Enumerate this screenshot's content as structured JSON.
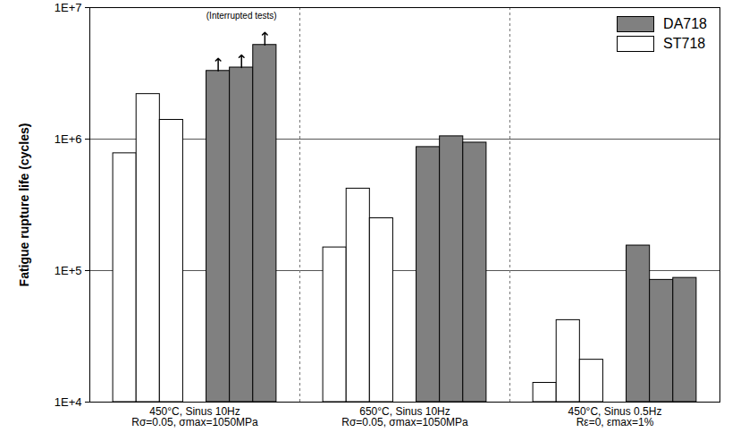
{
  "chart_data": {
    "type": "bar",
    "categories": [
      "450°C, Sinus 10Hz\nRσ=0.05, σmax=1050MPa",
      "650°C, Sinus 10Hz\nRσ=0.05, σmax=1050MPa",
      "450°C, Sinus 0.5Hz\nRε=0, εmax=1%"
    ],
    "series": [
      {
        "name": "DA718",
        "color": "#808080",
        "values": [
          [
            3300000,
            3500000,
            5200000
          ],
          [
            870000,
            1050000,
            940000
          ],
          [
            155000,
            85000,
            88000
          ]
        ],
        "interrupted": [
          [
            true,
            true,
            true
          ],
          [
            false,
            false,
            false
          ],
          [
            false,
            false,
            false
          ]
        ]
      },
      {
        "name": "ST718",
        "color": "#ffffff",
        "values": [
          [
            780000,
            2200000,
            1400000
          ],
          [
            150000,
            420000,
            250000
          ],
          [
            14000,
            42000,
            21000
          ]
        ]
      }
    ],
    "annotations": [
      {
        "text": "(Interrupted tests)",
        "series": "DA718",
        "category": "450°C, Sinus 10Hz\nRσ=0.05, σmax=1050MPa"
      }
    ],
    "y_label": "Fatigue rupture life (cycles)",
    "log": "y",
    "ylim": [
      10000,
      10000000
    ],
    "yticks": [
      {
        "value": 10000,
        "label": "1E+4"
      },
      {
        "value": 100000,
        "label": "1E+5"
      },
      {
        "value": 1000000,
        "label": "1E+6"
      },
      {
        "value": 10000000,
        "label": "1E+7"
      }
    ],
    "grid": true,
    "legend": "top-right"
  }
}
